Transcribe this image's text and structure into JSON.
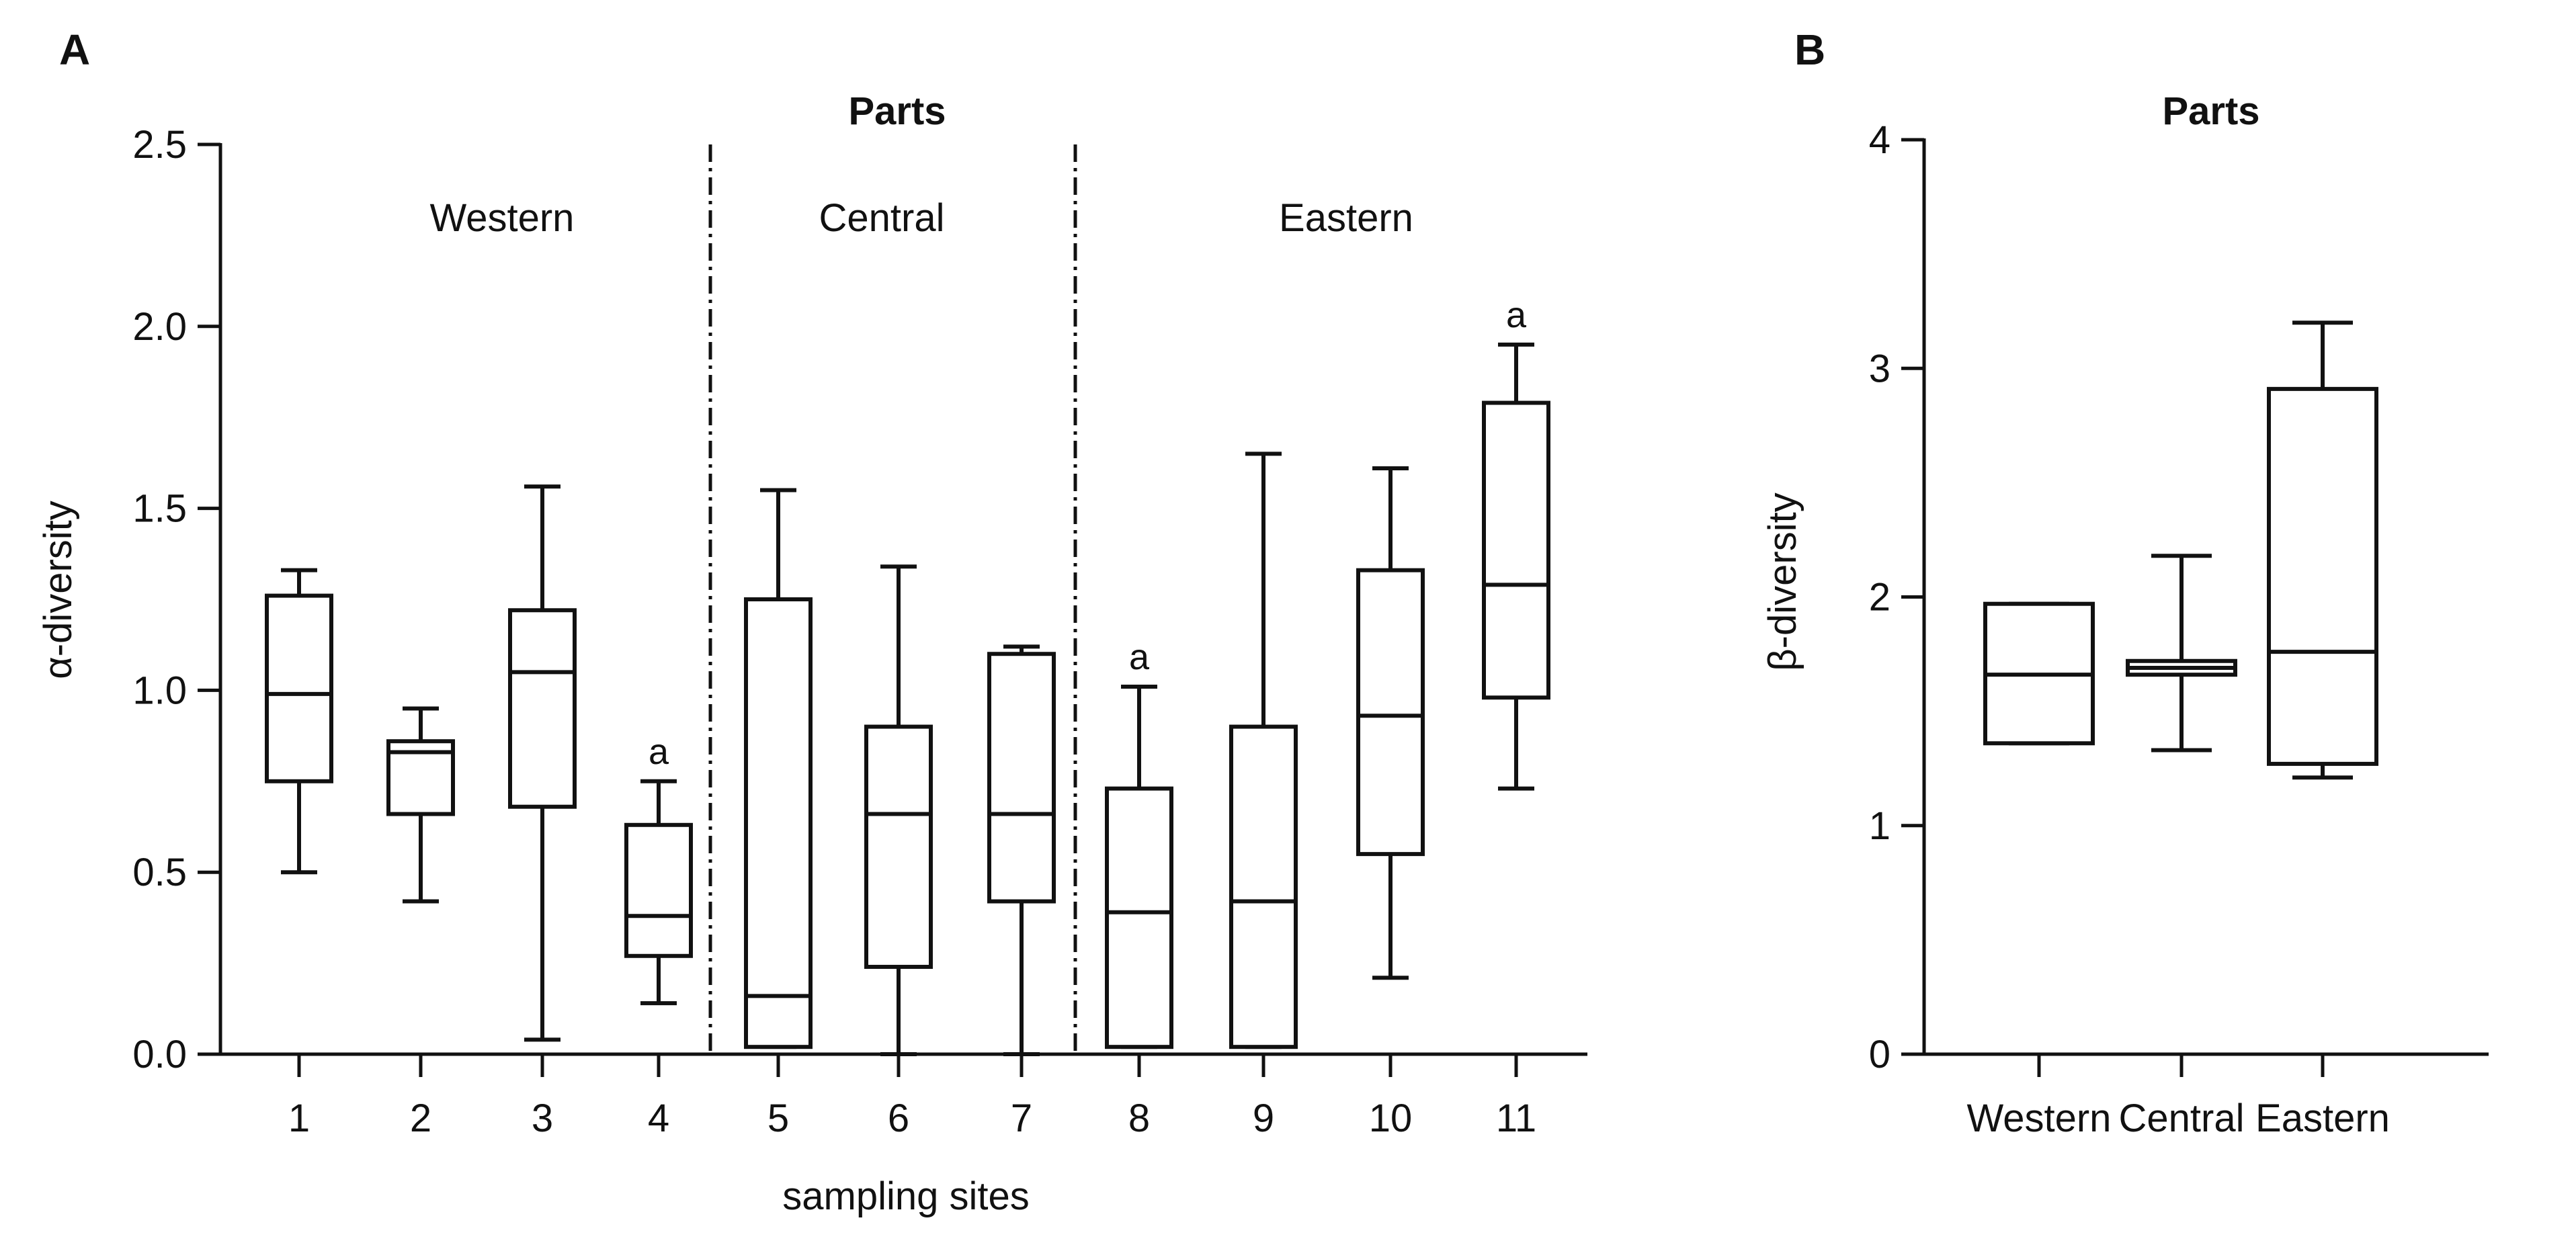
{
  "chart_data": [
    {
      "panel": "A",
      "type": "box",
      "title": "Parts",
      "xlabel": "sampling sites",
      "ylabel": "α-diversity",
      "ylim": [
        0,
        2.5
      ],
      "yticks": [
        0.0,
        0.5,
        1.0,
        1.5,
        2.0,
        2.5
      ],
      "ytick_labels": [
        "0.0",
        "0.5",
        "1.0",
        "1.5",
        "2.0",
        "2.5"
      ],
      "groups": [
        {
          "label": "Western",
          "categories": [
            "1",
            "2",
            "3",
            "4"
          ]
        },
        {
          "label": "Central",
          "categories": [
            "5",
            "6",
            "7"
          ]
        },
        {
          "label": "Eastern",
          "categories": [
            "8",
            "9",
            "10",
            "11"
          ]
        }
      ],
      "categories": [
        "1",
        "2",
        "3",
        "4",
        "5",
        "6",
        "7",
        "8",
        "9",
        "10",
        "11"
      ],
      "boxes": [
        {
          "category": "1",
          "min": 0.5,
          "q1": 0.75,
          "median": 0.99,
          "q3": 1.26,
          "max": 1.33,
          "sig": ""
        },
        {
          "category": "2",
          "min": 0.42,
          "q1": 0.66,
          "median": 0.83,
          "q3": 0.86,
          "max": 0.95,
          "sig": ""
        },
        {
          "category": "3",
          "min": 0.04,
          "q1": 0.68,
          "median": 1.05,
          "q3": 1.22,
          "max": 1.56,
          "sig": ""
        },
        {
          "category": "4",
          "min": 0.14,
          "q1": 0.27,
          "median": 0.38,
          "q3": 0.63,
          "max": 0.75,
          "sig": "a"
        },
        {
          "category": "5",
          "min": 0.02,
          "q1": 0.02,
          "median": 0.16,
          "q3": 1.25,
          "max": 1.55,
          "sig": ""
        },
        {
          "category": "6",
          "min": 0.0,
          "q1": 0.24,
          "median": 0.66,
          "q3": 0.9,
          "max": 1.34,
          "sig": ""
        },
        {
          "category": "7",
          "min": 0.0,
          "q1": 0.42,
          "median": 0.66,
          "q3": 1.1,
          "max": 1.12,
          "sig": ""
        },
        {
          "category": "8",
          "min": 0.02,
          "q1": 0.02,
          "median": 0.39,
          "q3": 0.73,
          "max": 1.01,
          "sig": "a"
        },
        {
          "category": "9",
          "min": 0.02,
          "q1": 0.02,
          "median": 0.42,
          "q3": 0.9,
          "max": 1.65,
          "sig": ""
        },
        {
          "category": "10",
          "min": 0.21,
          "q1": 0.55,
          "median": 0.93,
          "q3": 1.33,
          "max": 1.61,
          "sig": ""
        },
        {
          "category": "11",
          "min": 0.73,
          "q1": 0.98,
          "median": 1.29,
          "q3": 1.79,
          "max": 1.95,
          "sig": "a"
        }
      ]
    },
    {
      "panel": "B",
      "type": "box",
      "title": "Parts",
      "xlabel": "",
      "ylabel": "β-diversity",
      "ylim": [
        0,
        4
      ],
      "yticks": [
        0,
        1,
        2,
        3,
        4
      ],
      "ytick_labels": [
        "0",
        "1",
        "2",
        "3",
        "4"
      ],
      "categories": [
        "Western",
        "Central",
        "Eastern"
      ],
      "boxes": [
        {
          "category": "Western",
          "min": 1.36,
          "q1": 1.36,
          "median": 1.66,
          "q3": 1.97,
          "max": 1.97
        },
        {
          "category": "Central",
          "min": 1.33,
          "q1": 1.66,
          "median": 1.69,
          "q3": 1.72,
          "max": 2.18
        },
        {
          "category": "Eastern",
          "min": 1.21,
          "q1": 1.27,
          "median": 1.76,
          "q3": 2.91,
          "max": 3.2
        }
      ]
    }
  ]
}
